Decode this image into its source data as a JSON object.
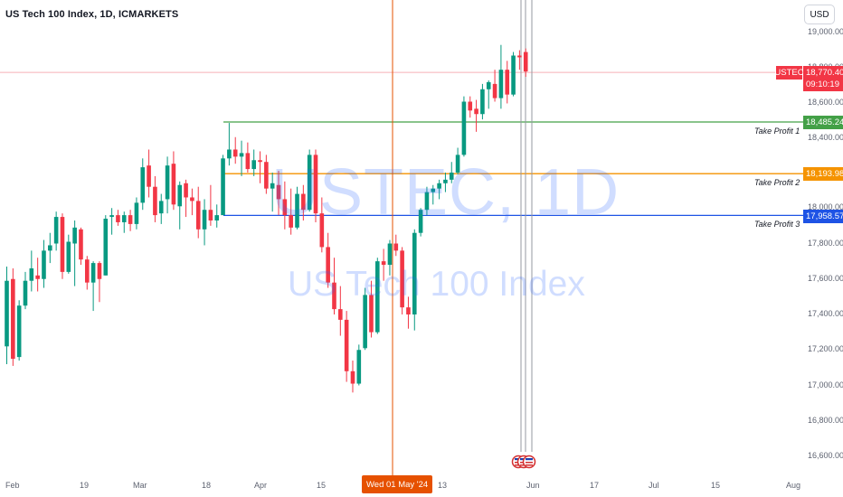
{
  "header": {
    "title": "US Tech 100 Index, 1D, ICMARKETS",
    "currency_button": "USD"
  },
  "watermark": {
    "symbol": "USTEC, 1D",
    "name": "US Tech 100 Index"
  },
  "price_axis": {
    "labels": [
      "19,000.00",
      "18,800.00",
      "18,600.00",
      "18,400.00",
      "18,000.00",
      "17,800.00",
      "17,600.00",
      "17,400.00",
      "17,200.00",
      "17,000.00",
      "16,800.00",
      "16,600.00"
    ]
  },
  "time_axis": {
    "labels": [
      "Feb",
      "19",
      "Mar",
      "18",
      "Apr",
      "15",
      "13",
      "Jun",
      "17",
      "Jul",
      "15",
      "Aug"
    ],
    "highlighted_date": "Wed 01 May '24"
  },
  "current_price": {
    "symbol": "USTEC",
    "price": "18,770.40",
    "countdown": "09:10:19"
  },
  "take_profit_levels": [
    {
      "label": "Take Profit 1",
      "value": "18,485.24",
      "color": "#43a047"
    },
    {
      "label": "Take Profit 2",
      "value": "18,193.98",
      "color": "#f59300"
    },
    {
      "label": "Take Profit 3",
      "value": "17,958.57",
      "color": "#1e53e5"
    }
  ],
  "colors": {
    "up_candle": "#089981",
    "down_candle": "#f23645",
    "vertical_marker": "#e65100"
  },
  "event_icons": [
    "us-flag-icon",
    "us-flag-icon",
    "us-flag-icon"
  ],
  "chart_data": {
    "type": "candlestick",
    "symbol": "USTEC",
    "interval": "1D",
    "candles": [
      {
        "o": 17220,
        "h": 17670,
        "l": 17120,
        "c": 17590
      },
      {
        "o": 17600,
        "h": 17660,
        "l": 17110,
        "c": 17150
      },
      {
        "o": 17160,
        "h": 17480,
        "l": 17140,
        "c": 17450
      },
      {
        "o": 17450,
        "h": 17640,
        "l": 17430,
        "c": 17590
      },
      {
        "o": 17590,
        "h": 17760,
        "l": 17530,
        "c": 17660
      },
      {
        "o": 17620,
        "h": 17720,
        "l": 17530,
        "c": 17600
      },
      {
        "o": 17600,
        "h": 17820,
        "l": 17550,
        "c": 17760
      },
      {
        "o": 17760,
        "h": 17860,
        "l": 17690,
        "c": 17790
      },
      {
        "o": 17800,
        "h": 17980,
        "l": 17760,
        "c": 17950
      },
      {
        "o": 17950,
        "h": 17970,
        "l": 17600,
        "c": 17640
      },
      {
        "o": 17640,
        "h": 17850,
        "l": 17630,
        "c": 17810
      },
      {
        "o": 17800,
        "h": 17930,
        "l": 17560,
        "c": 17890
      },
      {
        "o": 17880,
        "h": 17890,
        "l": 17680,
        "c": 17710
      },
      {
        "o": 17710,
        "h": 17730,
        "l": 17540,
        "c": 17580
      },
      {
        "o": 17580,
        "h": 17700,
        "l": 17420,
        "c": 17690
      },
      {
        "o": 17690,
        "h": 17700,
        "l": 17470,
        "c": 17600
      },
      {
        "o": 17620,
        "h": 17960,
        "l": 17620,
        "c": 17940
      },
      {
        "o": 17950,
        "h": 18000,
        "l": 17850,
        "c": 17960
      },
      {
        "o": 17960,
        "h": 17990,
        "l": 17900,
        "c": 17920
      },
      {
        "o": 17920,
        "h": 17980,
        "l": 17860,
        "c": 17960
      },
      {
        "o": 17960,
        "h": 17990,
        "l": 17870,
        "c": 17910
      },
      {
        "o": 17910,
        "h": 18060,
        "l": 17880,
        "c": 18030
      },
      {
        "o": 18030,
        "h": 18280,
        "l": 17990,
        "c": 18230
      },
      {
        "o": 18240,
        "h": 18330,
        "l": 18060,
        "c": 18120
      },
      {
        "o": 18120,
        "h": 18180,
        "l": 17920,
        "c": 17960
      },
      {
        "o": 17970,
        "h": 18080,
        "l": 17910,
        "c": 18040
      },
      {
        "o": 18050,
        "h": 18290,
        "l": 17970,
        "c": 18240
      },
      {
        "o": 18250,
        "h": 18320,
        "l": 17990,
        "c": 18020
      },
      {
        "o": 18010,
        "h": 18150,
        "l": 17880,
        "c": 18130
      },
      {
        "o": 18140,
        "h": 18160,
        "l": 17950,
        "c": 18060
      },
      {
        "o": 18060,
        "h": 18110,
        "l": 17960,
        "c": 18040
      },
      {
        "o": 18040,
        "h": 18120,
        "l": 17830,
        "c": 17880
      },
      {
        "o": 17880,
        "h": 18050,
        "l": 17790,
        "c": 17990
      },
      {
        "o": 17990,
        "h": 18130,
        "l": 17900,
        "c": 17930
      },
      {
        "o": 17930,
        "h": 18020,
        "l": 17890,
        "c": 17960
      },
      {
        "o": 17960,
        "h": 18300,
        "l": 17960,
        "c": 18280
      },
      {
        "o": 18280,
        "h": 18480,
        "l": 18240,
        "c": 18330
      },
      {
        "o": 18330,
        "h": 18400,
        "l": 18250,
        "c": 18290
      },
      {
        "o": 18290,
        "h": 18380,
        "l": 18180,
        "c": 18310
      },
      {
        "o": 18310,
        "h": 18370,
        "l": 18200,
        "c": 18220
      },
      {
        "o": 18220,
        "h": 18330,
        "l": 18180,
        "c": 18270
      },
      {
        "o": 18270,
        "h": 18320,
        "l": 18140,
        "c": 18260
      },
      {
        "o": 18260,
        "h": 18300,
        "l": 18080,
        "c": 18110
      },
      {
        "o": 18110,
        "h": 18200,
        "l": 17980,
        "c": 18140
      },
      {
        "o": 18130,
        "h": 18210,
        "l": 17960,
        "c": 18050
      },
      {
        "o": 18050,
        "h": 18150,
        "l": 17880,
        "c": 17960
      },
      {
        "o": 17960,
        "h": 18110,
        "l": 17850,
        "c": 17890
      },
      {
        "o": 17890,
        "h": 18120,
        "l": 17880,
        "c": 18080
      },
      {
        "o": 18080,
        "h": 18130,
        "l": 17930,
        "c": 17990
      },
      {
        "o": 17990,
        "h": 18330,
        "l": 17980,
        "c": 18300
      },
      {
        "o": 18300,
        "h": 18330,
        "l": 17920,
        "c": 17970
      },
      {
        "o": 17970,
        "h": 18060,
        "l": 17750,
        "c": 17780
      },
      {
        "o": 17780,
        "h": 17860,
        "l": 17550,
        "c": 17580
      },
      {
        "o": 17580,
        "h": 17720,
        "l": 17400,
        "c": 17430
      },
      {
        "o": 17430,
        "h": 17560,
        "l": 17280,
        "c": 17370
      },
      {
        "o": 17370,
        "h": 17420,
        "l": 17020,
        "c": 17080
      },
      {
        "o": 17080,
        "h": 17140,
        "l": 16960,
        "c": 17010
      },
      {
        "o": 17010,
        "h": 17230,
        "l": 17000,
        "c": 17200
      },
      {
        "o": 17210,
        "h": 17550,
        "l": 17200,
        "c": 17510
      },
      {
        "o": 17510,
        "h": 17590,
        "l": 17270,
        "c": 17300
      },
      {
        "o": 17300,
        "h": 17720,
        "l": 17290,
        "c": 17700
      },
      {
        "o": 17700,
        "h": 17770,
        "l": 17590,
        "c": 17680
      },
      {
        "o": 17680,
        "h": 17820,
        "l": 17620,
        "c": 17800
      },
      {
        "o": 17800,
        "h": 17850,
        "l": 17730,
        "c": 17760
      },
      {
        "o": 17760,
        "h": 17780,
        "l": 17400,
        "c": 17440
      },
      {
        "o": 17440,
        "h": 17500,
        "l": 17320,
        "c": 17400
      },
      {
        "o": 17400,
        "h": 17880,
        "l": 17310,
        "c": 17860
      },
      {
        "o": 17860,
        "h": 18000,
        "l": 17840,
        "c": 17990
      },
      {
        "o": 17990,
        "h": 18120,
        "l": 17960,
        "c": 18090
      },
      {
        "o": 18090,
        "h": 18130,
        "l": 18020,
        "c": 18110
      },
      {
        "o": 18110,
        "h": 18160,
        "l": 18050,
        "c": 18140
      },
      {
        "o": 18140,
        "h": 18200,
        "l": 18090,
        "c": 18160
      },
      {
        "o": 18160,
        "h": 18260,
        "l": 18140,
        "c": 18200
      },
      {
        "o": 18200,
        "h": 18340,
        "l": 18190,
        "c": 18300
      },
      {
        "o": 18300,
        "h": 18630,
        "l": 18290,
        "c": 18600
      },
      {
        "o": 18600,
        "h": 18630,
        "l": 18510,
        "c": 18550
      },
      {
        "o": 18560,
        "h": 18610,
        "l": 18430,
        "c": 18530
      },
      {
        "o": 18530,
        "h": 18700,
        "l": 18500,
        "c": 18670
      },
      {
        "o": 18670,
        "h": 18720,
        "l": 18560,
        "c": 18710
      },
      {
        "o": 18700,
        "h": 18780,
        "l": 18600,
        "c": 18620
      },
      {
        "o": 18620,
        "h": 18920,
        "l": 18560,
        "c": 18780
      },
      {
        "o": 18780,
        "h": 18830,
        "l": 18590,
        "c": 18640
      },
      {
        "o": 18640,
        "h": 18880,
        "l": 18630,
        "c": 18860
      },
      {
        "o": 18860,
        "h": 18890,
        "l": 18780,
        "c": 18850
      },
      {
        "o": 18880,
        "h": 18900,
        "l": 18740,
        "c": 18770
      }
    ],
    "y_range": [
      16550,
      19050
    ]
  }
}
